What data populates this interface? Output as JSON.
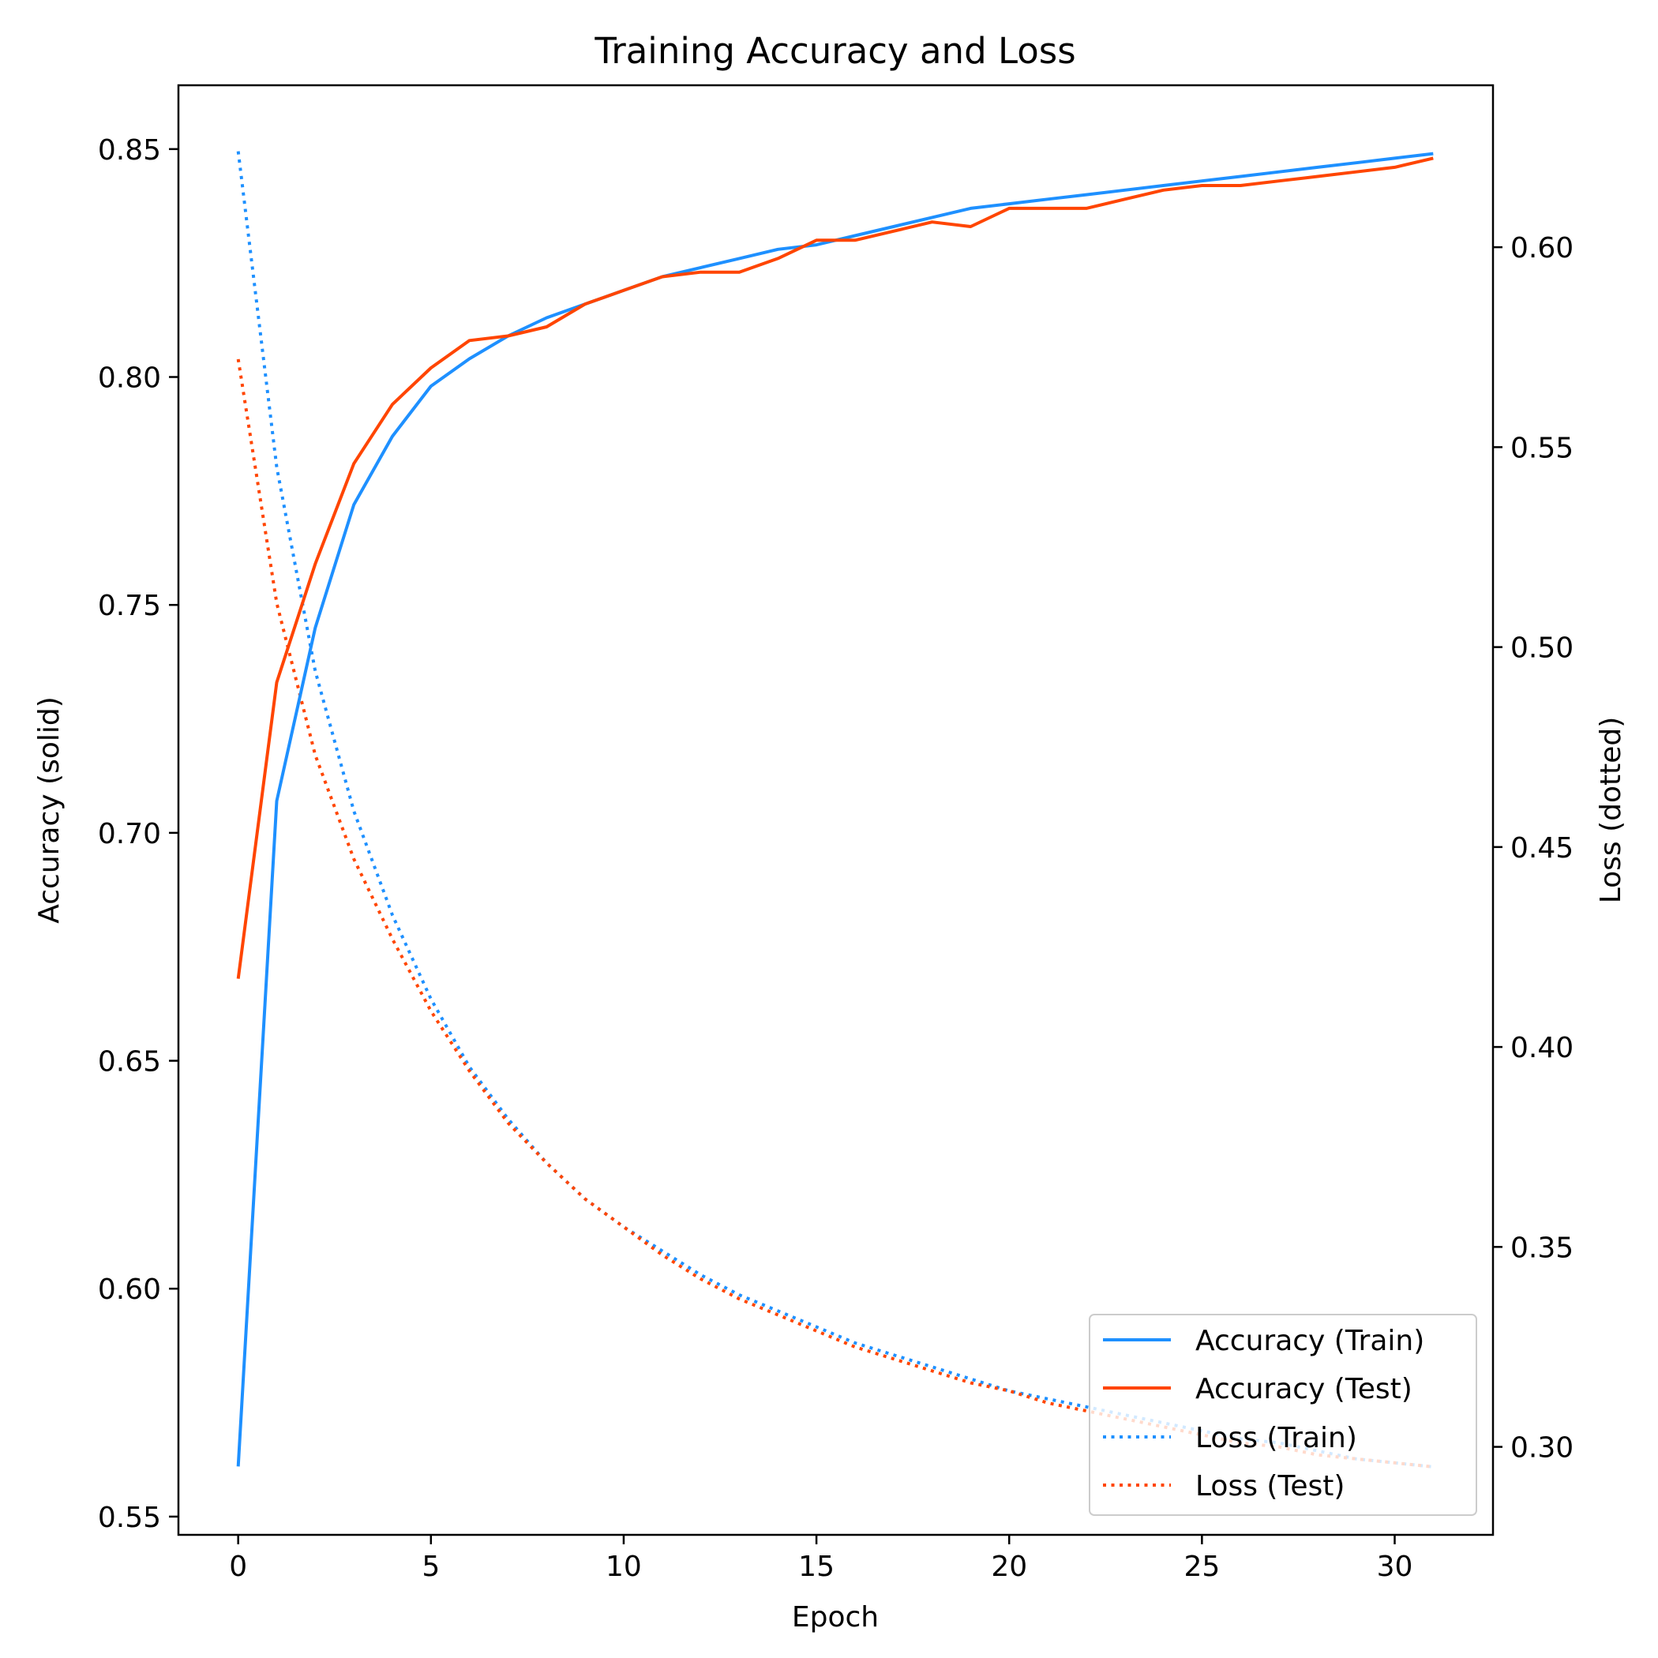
{
  "chart_data": {
    "type": "line",
    "title": "Training Accuracy and Loss",
    "xlabel": "Epoch",
    "ylabel_left": "Accuracy (solid)",
    "ylabel_right": "Loss (dotted)",
    "xlim": [
      -1.55,
      32.55
    ],
    "ylim_left": [
      0.546,
      0.864
    ],
    "ylim_right": [
      0.278,
      0.6405
    ],
    "xticks": [
      0,
      5,
      10,
      15,
      20,
      25,
      30
    ],
    "yticks_left": [
      0.55,
      0.6,
      0.65,
      0.7,
      0.75,
      0.8,
      0.85
    ],
    "yticks_right": [
      0.3,
      0.35,
      0.4,
      0.45,
      0.5,
      0.55,
      0.6
    ],
    "grid": false,
    "legend_position": "lower-right",
    "x": [
      0,
      1,
      2,
      3,
      4,
      5,
      6,
      7,
      8,
      9,
      10,
      11,
      12,
      13,
      14,
      15,
      16,
      17,
      18,
      19,
      20,
      21,
      22,
      23,
      24,
      25,
      26,
      27,
      28,
      29,
      30,
      31
    ],
    "series": [
      {
        "name": "Accuracy (Train)",
        "axis": "left",
        "style": "solid",
        "color": "#1E90FF",
        "values": [
          0.561,
          0.707,
          0.745,
          0.772,
          0.787,
          0.798,
          0.804,
          0.809,
          0.813,
          0.816,
          0.819,
          0.822,
          0.824,
          0.826,
          0.828,
          0.829,
          0.831,
          0.833,
          0.835,
          0.837,
          0.838,
          0.839,
          0.84,
          0.841,
          0.842,
          0.843,
          0.844,
          0.845,
          0.846,
          0.847,
          0.848,
          0.849
        ]
      },
      {
        "name": "Accuracy (Test)",
        "axis": "left",
        "style": "solid",
        "color": "#FF4500",
        "values": [
          0.668,
          0.733,
          0.759,
          0.781,
          0.794,
          0.802,
          0.808,
          0.809,
          0.811,
          0.816,
          0.819,
          0.822,
          0.823,
          0.823,
          0.826,
          0.83,
          0.83,
          0.832,
          0.834,
          0.833,
          0.837,
          0.837,
          0.837,
          0.839,
          0.841,
          0.842,
          0.842,
          0.843,
          0.844,
          0.845,
          0.846,
          0.848
        ]
      },
      {
        "name": "Loss (Train)",
        "axis": "right",
        "style": "dotted",
        "color": "#1E90FF",
        "values": [
          0.624,
          0.545,
          0.494,
          0.459,
          0.433,
          0.412,
          0.395,
          0.382,
          0.371,
          0.362,
          0.355,
          0.349,
          0.343,
          0.338,
          0.334,
          0.33,
          0.326,
          0.323,
          0.32,
          0.317,
          0.314,
          0.312,
          0.31,
          0.308,
          0.306,
          0.304,
          0.302,
          0.301,
          0.299,
          0.297,
          0.296,
          0.295
        ]
      },
      {
        "name": "Loss (Test)",
        "axis": "right",
        "style": "dotted",
        "color": "#FF4500",
        "values": [
          0.572,
          0.511,
          0.473,
          0.447,
          0.427,
          0.409,
          0.394,
          0.381,
          0.371,
          0.362,
          0.355,
          0.348,
          0.342,
          0.337,
          0.333,
          0.329,
          0.325,
          0.322,
          0.319,
          0.316,
          0.314,
          0.311,
          0.309,
          0.307,
          0.305,
          0.303,
          0.301,
          0.3,
          0.298,
          0.297,
          0.296,
          0.295
        ]
      }
    ]
  }
}
